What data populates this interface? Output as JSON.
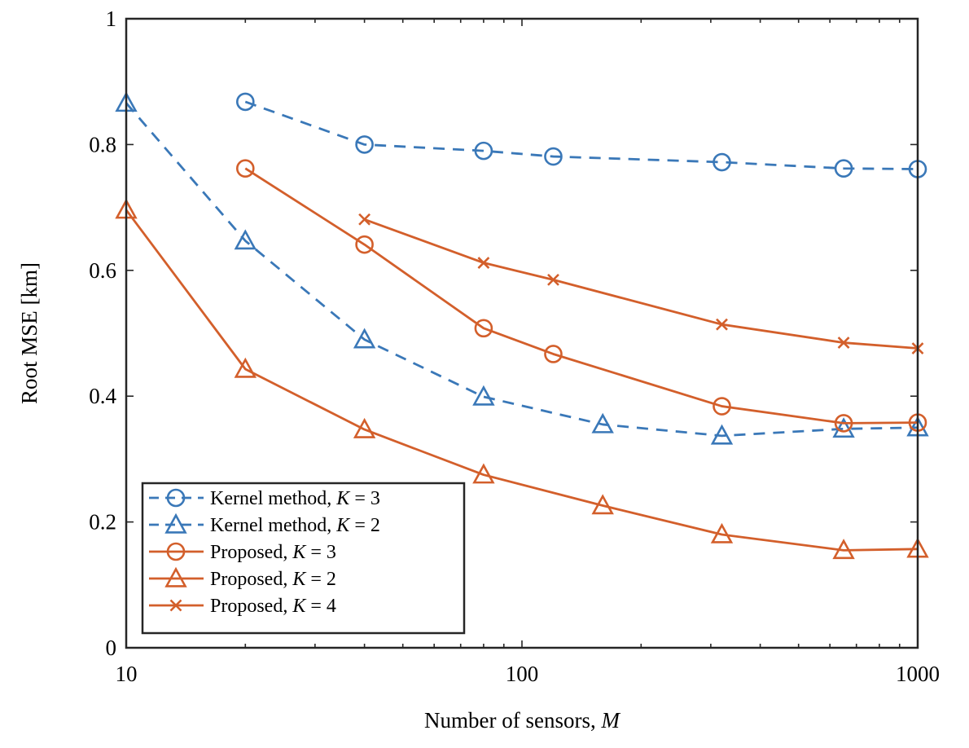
{
  "chart_data": {
    "type": "line",
    "title": "",
    "xlabel": "Number of sensors, ",
    "xlabel_var": "M",
    "ylabel": "Root MSE [km]",
    "xscale": "log",
    "xlim": [
      10,
      1000
    ],
    "ylim": [
      0,
      1
    ],
    "grid": false,
    "legend_position": "bottom-left",
    "x_tick_labels": [
      "10",
      "100",
      "1000"
    ],
    "x_ticks": [
      10,
      100,
      1000
    ],
    "y_tick_labels": [
      "0",
      "0.2",
      "0.4",
      "0.6",
      "0.8",
      "1"
    ],
    "y_ticks": [
      0,
      0.2,
      0.4,
      0.6,
      0.8,
      1
    ],
    "series": [
      {
        "name": "Kernel method, K = 3",
        "label_text": "Kernel method, ",
        "label_var": "K",
        "label_eq": " = 3",
        "color": "#3a78b8",
        "dash": "dashed",
        "marker": "circle",
        "x": [
          20,
          40,
          80,
          120,
          320,
          650,
          1000
        ],
        "values": [
          0.868,
          0.8,
          0.79,
          0.781,
          0.772,
          0.762,
          0.761
        ]
      },
      {
        "name": "Kernel method, K = 2",
        "label_text": "Kernel method, ",
        "label_var": "K",
        "label_eq": " = 2",
        "color": "#3a78b8",
        "dash": "dashed",
        "marker": "triangle",
        "x": [
          10,
          20,
          40,
          80,
          160,
          320,
          650,
          1000
        ],
        "values": [
          0.866,
          0.647,
          0.49,
          0.399,
          0.355,
          0.337,
          0.348,
          0.35
        ]
      },
      {
        "name": "Proposed, K = 3",
        "label_text": "Proposed, ",
        "label_var": "K",
        "label_eq": " = 3",
        "color": "#d35f2b",
        "dash": "solid",
        "marker": "circle",
        "x": [
          20,
          40,
          80,
          120,
          320,
          650,
          1000
        ],
        "values": [
          0.762,
          0.641,
          0.508,
          0.467,
          0.384,
          0.357,
          0.358
        ]
      },
      {
        "name": "Proposed, K = 2",
        "label_text": "Proposed, ",
        "label_var": "K",
        "label_eq": " = 2",
        "color": "#d35f2b",
        "dash": "solid",
        "marker": "triangle",
        "x": [
          10,
          20,
          40,
          80,
          160,
          320,
          650,
          1000
        ],
        "values": [
          0.696,
          0.443,
          0.347,
          0.275,
          0.226,
          0.18,
          0.155,
          0.157
        ]
      },
      {
        "name": "Proposed, K = 4",
        "label_text": "Proposed, ",
        "label_var": "K",
        "label_eq": " = 4",
        "color": "#d35f2b",
        "dash": "solid",
        "marker": "x",
        "x": [
          40,
          80,
          120,
          320,
          650,
          1000
        ],
        "values": [
          0.681,
          0.612,
          0.585,
          0.514,
          0.485,
          0.476
        ]
      }
    ]
  }
}
